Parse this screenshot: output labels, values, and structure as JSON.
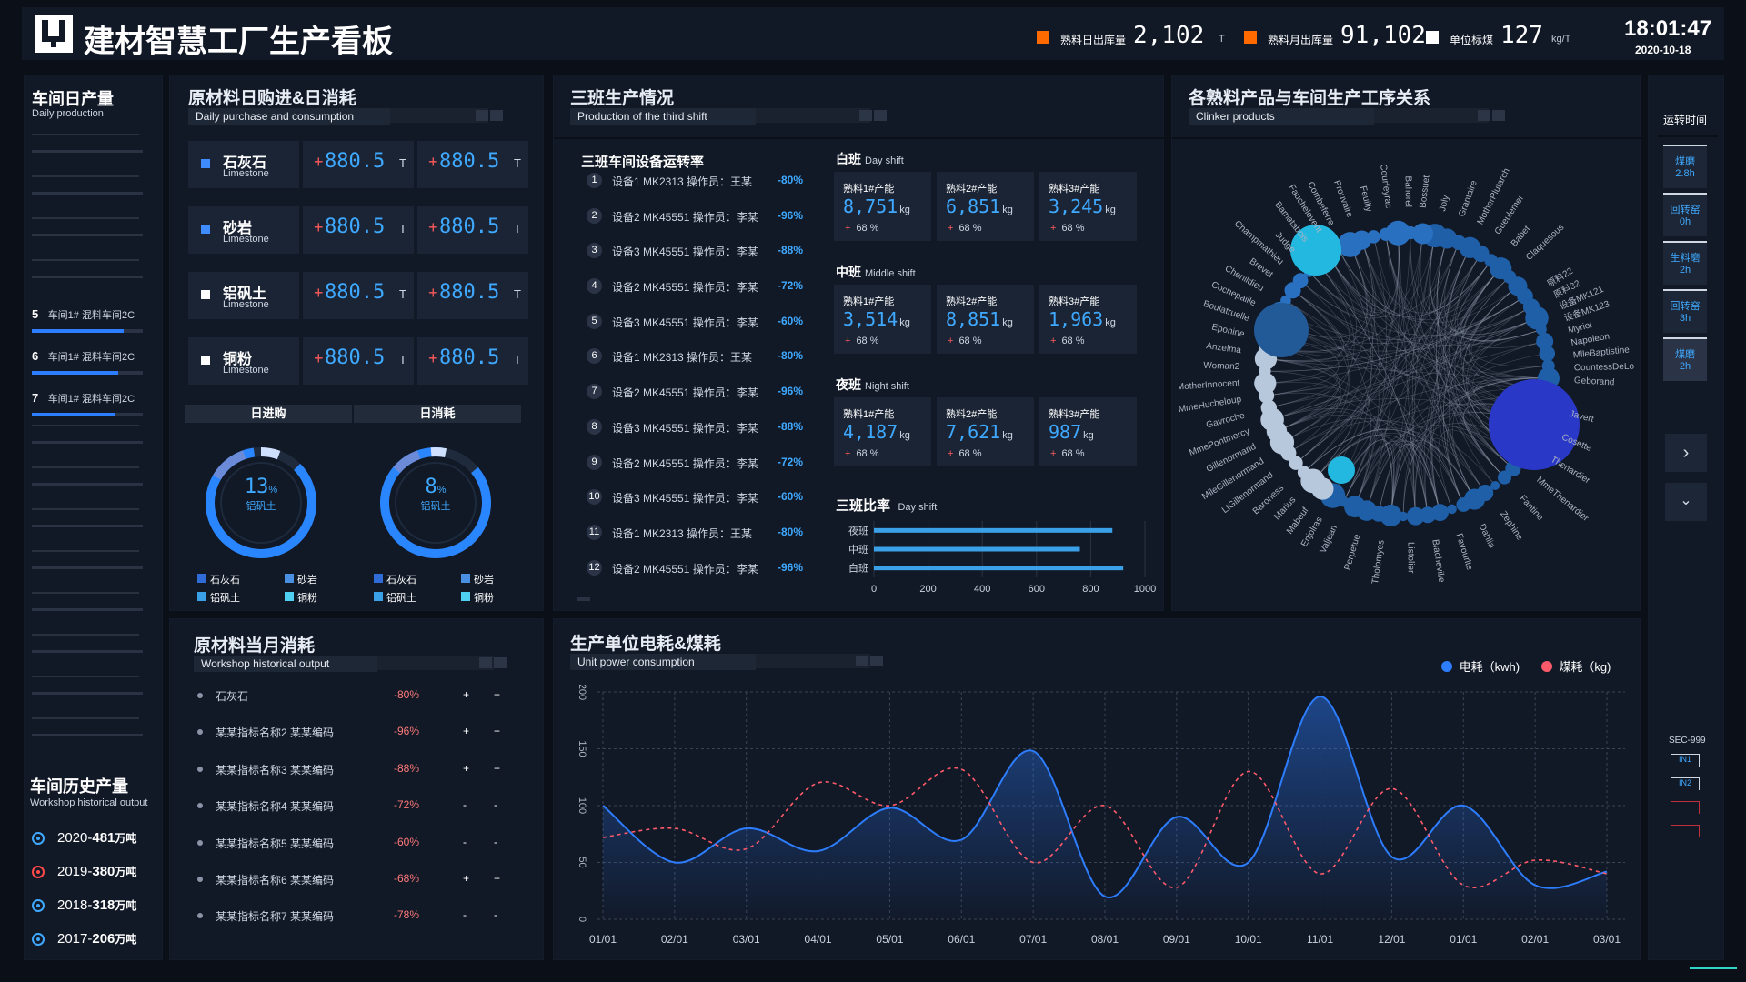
{
  "header": {
    "title": "建材智慧工厂生产看板",
    "stats": [
      {
        "label": "熟料日出库量",
        "value": "2,102",
        "unit": "T",
        "color": "#ff6a00"
      },
      {
        "label": "熟料月出库量",
        "value": "91,102",
        "unit": "T",
        "color": "#ff6a00"
      },
      {
        "label": "单位标煤",
        "value": "127",
        "unit": "kg/T",
        "color": "#ffffff"
      }
    ],
    "time": "18:01:47",
    "date": "2020-10-18"
  },
  "daily": {
    "title": "车间日产量",
    "sub": "Daily production",
    "rows": [
      {
        "num": "5",
        "label": "车间1# 混料车间2C",
        "progress": 0.83
      },
      {
        "num": "6",
        "label": "车间1# 混料车间2C",
        "progress": 0.78
      },
      {
        "num": "7",
        "label": "车间1# 混料车间2C",
        "progress": 0.75
      }
    ]
  },
  "history": {
    "title": "车间历史产量",
    "sub": "Workshop historical output",
    "unit": "万吨",
    "rows": [
      {
        "year": "2020-",
        "value": "481",
        "color": "#3fa9ff"
      },
      {
        "year": "2019-",
        "value": "380",
        "color": "#ff4a4a"
      },
      {
        "year": "2018-",
        "value": "318",
        "color": "#3fa9ff"
      },
      {
        "year": "2017-",
        "value": "206",
        "color": "#3fa9ff"
      }
    ]
  },
  "purchase": {
    "title": "原材料日购进&日消耗",
    "sub": "Daily purchase and consumption",
    "rows": [
      {
        "name": "石灰石",
        "en": "Limestone",
        "v1": "880.5",
        "v2": "880.5",
        "unit": "T",
        "color": "#3e8cff"
      },
      {
        "name": "砂岩",
        "en": "Limestone",
        "v1": "880.5",
        "v2": "880.5",
        "unit": "T",
        "color": "#3e8cff"
      },
      {
        "name": "铝矾土",
        "en": "Limestone",
        "v1": "880.5",
        "v2": "880.5",
        "unit": "T",
        "color": "#ffffff"
      },
      {
        "name": "铜粉",
        "en": "Limestone",
        "v1": "880.5",
        "v2": "880.5",
        "unit": "T",
        "color": "#ffffff"
      }
    ],
    "tabs": [
      "日进购",
      "日消耗"
    ],
    "donuts": [
      {
        "value": "13",
        "unit": "%",
        "label": "铝矾土"
      },
      {
        "value": "8",
        "unit": "%",
        "label": "铝矾土"
      }
    ],
    "legend": [
      {
        "name": "石灰石",
        "color": "#2f6cd8"
      },
      {
        "name": "砂岩",
        "color": "#4a90e2"
      },
      {
        "name": "铝矾土",
        "color": "#3aa0e8"
      },
      {
        "name": "铜粉",
        "color": "#4fd0f0"
      }
    ]
  },
  "monthly": {
    "title": "原材料当月消耗",
    "sub": "Workshop historical output",
    "rows": [
      {
        "name": "石灰石",
        "pct": "-80%",
        "a": "+",
        "b": "+"
      },
      {
        "name": "某某指标名称2 某某编码",
        "pct": "-96%",
        "a": "+",
        "b": "+"
      },
      {
        "name": "某某指标名称3 某某编码",
        "pct": "-88%",
        "a": "+",
        "b": "+"
      },
      {
        "name": "某某指标名称4 某某编码",
        "pct": "-72%",
        "a": "-",
        "b": "-"
      },
      {
        "name": "某某指标名称5 某某编码",
        "pct": "-60%",
        "a": "-",
        "b": "-"
      },
      {
        "name": "某某指标名称6 某某编码",
        "pct": "-68%",
        "a": "+",
        "b": "+"
      },
      {
        "name": "某某指标名称7 某某编码",
        "pct": "-78%",
        "a": "-",
        "b": "-"
      }
    ]
  },
  "shift": {
    "title": "三班生产情况",
    "sub": "Production of the third shift",
    "equip_title": "三班车间设备运转率",
    "equip": [
      {
        "n": "1",
        "text": "设备1 MK2313 操作员：王某",
        "pct": "-80%"
      },
      {
        "n": "2",
        "text": "设备2 MK45551 操作员：李某",
        "pct": "-96%"
      },
      {
        "n": "3",
        "text": "设备3 MK45551 操作员：李某",
        "pct": "-88%"
      },
      {
        "n": "4",
        "text": "设备2 MK45551 操作员：李某",
        "pct": "-72%"
      },
      {
        "n": "5",
        "text": "设备3 MK45551 操作员：李某",
        "pct": "-60%"
      },
      {
        "n": "6",
        "text": "设备1 MK2313 操作员：王某",
        "pct": "-80%"
      },
      {
        "n": "7",
        "text": "设备2 MK45551 操作员：李某",
        "pct": "-96%"
      },
      {
        "n": "8",
        "text": "设备3 MK45551 操作员：李某",
        "pct": "-88%"
      },
      {
        "n": "9",
        "text": "设备2 MK45551 操作员：李某",
        "pct": "-72%"
      },
      {
        "n": "10",
        "text": "设备3 MK45551 操作员：李某",
        "pct": "-60%"
      },
      {
        "n": "11",
        "text": "设备1 MK2313 操作员：王某",
        "pct": "-80%"
      },
      {
        "n": "12",
        "text": "设备2 MK45551 操作员：李某",
        "pct": "-96%"
      }
    ],
    "groups": [
      {
        "name": "白班",
        "en": "Day shift",
        "cards": [
          {
            "label": "熟料1#产能",
            "value": "8,751",
            "unit": "kg",
            "pct": "68 %"
          },
          {
            "label": "熟料2#产能",
            "value": "6,851",
            "unit": "kg",
            "pct": "68 %"
          },
          {
            "label": "熟料3#产能",
            "value": "3,245",
            "unit": "kg",
            "pct": "68 %"
          }
        ]
      },
      {
        "name": "中班",
        "en": "Middle shift",
        "cards": [
          {
            "label": "熟料1#产能",
            "value": "3,514",
            "unit": "kg",
            "pct": "68 %"
          },
          {
            "label": "熟料2#产能",
            "value": "8,851",
            "unit": "kg",
            "pct": "68 %"
          },
          {
            "label": "熟料3#产能",
            "value": "1,963",
            "unit": "kg",
            "pct": "68 %"
          }
        ]
      },
      {
        "name": "夜班",
        "en": "Night shift",
        "cards": [
          {
            "label": "熟料1#产能",
            "value": "4,187",
            "unit": "kg",
            "pct": "68 %"
          },
          {
            "label": "熟料2#产能",
            "value": "7,621",
            "unit": "kg",
            "pct": "68 %"
          },
          {
            "label": "熟料3#产能",
            "value": "987",
            "unit": "kg",
            "pct": "68 %"
          }
        ]
      }
    ],
    "ratio_title": "三班比率",
    "ratio_en": "Day shift"
  },
  "relation": {
    "title": "各熟料产品与车间生产工序关系",
    "sub": "Clinker products",
    "labels_top": [
      "Combeferre",
      "Prouvaire",
      "Feuilly",
      "Courfeyrac",
      "Bahorel",
      "Bossuet",
      "Joly",
      "Grantaire",
      "MotherPlutarch",
      "Gueulemer",
      "Babet",
      "Claquesous"
    ],
    "labels_left": [
      "Enjolras",
      "Mabeuf",
      "Marius",
      "Baroness",
      "LtGillenormand",
      "MlleGillenormand",
      "Gillenormand",
      "MmePontmercy",
      "Gavroche",
      "MmeHucheloup",
      "MotherInnocent",
      "Woman2",
      "Anzelma",
      "Eponine",
      "Boulatruelle",
      "Cochepaille",
      "Chenildieu",
      "Brevet",
      "Champmathieu",
      "Judge",
      "Bamatabois",
      "Fauchelevent"
    ],
    "labels_bottom": [
      "Javert",
      "Cosette",
      "Thenardier",
      "MmeThenardier",
      "Fantine",
      "Zephine",
      "Dahlia",
      "Favourite",
      "Blacheville",
      "Listolier",
      "Tholomyes",
      "Perpetue",
      "Valjean"
    ],
    "labels_right": [
      "原料22",
      "原料32",
      "设备MK121",
      "设备MK123",
      "Myriel",
      "Napoleon",
      "MlleBaptistine",
      "CountessDeLo",
      "Geborand"
    ]
  },
  "power": {
    "title": "生产单位电耗&煤耗",
    "sub": "Unit power consumption",
    "legend": [
      {
        "name": "电耗（kwh)",
        "color": "#2d7dff"
      },
      {
        "name": "煤耗（kg)",
        "color": "#ff5a6a"
      }
    ]
  },
  "side": {
    "title": "运转时间",
    "items": [
      {
        "name": "煤磨",
        "value": "2.8h"
      },
      {
        "name": "回转窑",
        "value": "0h"
      },
      {
        "name": "生料磨",
        "value": "2h"
      },
      {
        "name": "回转窑",
        "value": "3h"
      },
      {
        "name": "煤磨",
        "value": "2h"
      }
    ],
    "sec": "SEC-999",
    "tags": [
      "IN1",
      "IN2"
    ]
  },
  "chart_data": [
    {
      "type": "bar",
      "title": "三班比率",
      "categories": [
        "夜班",
        "中班",
        "白班"
      ],
      "values": [
        880,
        760,
        920
      ],
      "xlim": [
        0,
        1000
      ],
      "xticks": [
        "0",
        "200",
        "400",
        "600",
        "800",
        "1000"
      ]
    },
    {
      "type": "line",
      "title": "生产单位电耗&煤耗",
      "x": [
        "01/01",
        "02/01",
        "03/01",
        "04/01",
        "05/01",
        "06/01",
        "07/01",
        "08/01",
        "09/01",
        "10/01",
        "11/01",
        "12/01",
        "01/01",
        "02/01",
        "03/01"
      ],
      "ylim": [
        0,
        200
      ],
      "yticks": [
        "0",
        "50",
        "100",
        "150",
        "200"
      ],
      "series": [
        {
          "name": "电耗（kwh)",
          "color": "#2d7dff",
          "values": [
            100,
            50,
            80,
            60,
            98,
            70,
            148,
            20,
            90,
            50,
            196,
            55,
            100,
            30,
            42
          ]
        },
        {
          "name": "煤耗（kg)",
          "color": "#ff5a6a",
          "values": [
            72,
            80,
            62,
            120,
            100,
            132,
            50,
            100,
            28,
            130,
            40,
            115,
            30,
            52,
            40
          ]
        }
      ]
    }
  ]
}
